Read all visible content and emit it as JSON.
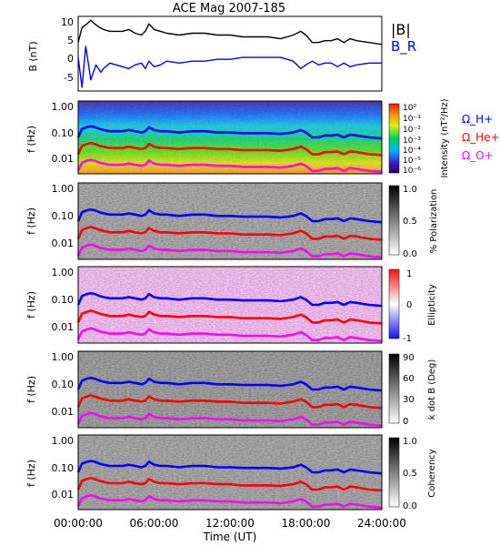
{
  "title": "ACE Mag 2007-185",
  "xlabel": "Time (UT)",
  "colors": {
    "total_field": "#000000",
    "radial_field": "#0000ff",
    "proton_gyro": "#0000ff",
    "helium_gyro": "#ff0000",
    "oxygen_gyro": "#ff00ff"
  },
  "chart_data": [
    {
      "type": "line",
      "ylabel": "B (nT)",
      "ylim": [
        -9,
        11
      ],
      "yticks": [
        "10",
        "5",
        "0",
        "-5"
      ],
      "xlim": [
        "00:00:00",
        "24:00:00"
      ],
      "xticks": [
        "00:00:00",
        "06:00:00",
        "12:00:00",
        "18:00:00",
        "24:00:00"
      ],
      "legend": [
        "|B|",
        "B_R"
      ],
      "series": [
        {
          "name": "|B|",
          "x": [
            0,
            0.3,
            0.7,
            1,
            1.3,
            1.7,
            2,
            2.5,
            3,
            3.5,
            4,
            4.5,
            5,
            5.3,
            5.6,
            6,
            6.5,
            7,
            8,
            9,
            10,
            11,
            12,
            13,
            14,
            15,
            16,
            17,
            17.6,
            18,
            18.5,
            19,
            19.5,
            20,
            20.5,
            21,
            21.5,
            22,
            23,
            24
          ],
          "values": [
            4,
            8,
            9,
            10,
            9,
            8,
            7.5,
            7,
            7,
            7,
            7.5,
            6.5,
            6,
            7,
            9,
            7.5,
            7,
            6.5,
            6,
            6.5,
            6.5,
            6,
            6,
            5.5,
            5.5,
            5.5,
            5,
            6,
            7,
            6,
            4,
            4,
            4.5,
            4.5,
            5,
            4,
            5,
            4.5,
            4,
            3.5
          ]
        },
        {
          "name": "B_R",
          "x": [
            0,
            0.3,
            0.6,
            1,
            1.4,
            1.8,
            2,
            2.5,
            3,
            3.5,
            4,
            4.5,
            5,
            5.3,
            5.6,
            6,
            6.5,
            7,
            8,
            9,
            10,
            11,
            12,
            13,
            14,
            15,
            16,
            17,
            17.6,
            18,
            18.5,
            19,
            19.5,
            20,
            20.5,
            21,
            21.5,
            22,
            23,
            24
          ],
          "values": [
            0,
            -8,
            3,
            -6,
            -2,
            -4,
            -3,
            -1.5,
            -2,
            -2.5,
            -3,
            -2,
            -1.5,
            -3,
            -1,
            -2.5,
            -2,
            -1,
            -1.5,
            -1,
            -1,
            -0.5,
            -0.5,
            0,
            0,
            0,
            0,
            -1,
            -3,
            -2,
            -1,
            -2,
            -1.5,
            -1.5,
            -2.5,
            -1.5,
            -2.5,
            -2,
            -1.5,
            -1.5
          ]
        }
      ]
    },
    {
      "type": "heatmap",
      "ylabel": "f (Hz)",
      "yscale": "log",
      "ylim": [
        0.003,
        1.0
      ],
      "yticks": [
        "1.00",
        "0.10",
        "0.01"
      ],
      "colorbar_label": "Intensity (nT²/Hz)",
      "colorbar_ticks": [
        "10⁰",
        "10⁻¹",
        "10⁻²",
        "10⁻³",
        "10⁻⁴",
        "10⁻⁵",
        "10⁻⁶"
      ],
      "legend": [
        "Ω_H+",
        "Ω_He+",
        "Ω_O+"
      ]
    },
    {
      "type": "heatmap",
      "ylabel": "f (Hz)",
      "yscale": "log",
      "yticks": [
        "1.00",
        "0.10",
        "0.01"
      ],
      "colorbar_label": "% Polarization",
      "colorbar_ticks": [
        "1.0",
        "0.5",
        "0.0"
      ]
    },
    {
      "type": "heatmap",
      "ylabel": "f (Hz)",
      "yscale": "log",
      "yticks": [
        "1.00",
        "0.10",
        "0.01"
      ],
      "colorbar_label": "Ellipticity",
      "colorbar_ticks": [
        "1",
        "0",
        "-1"
      ]
    },
    {
      "type": "heatmap",
      "ylabel": "f (Hz)",
      "yscale": "log",
      "yticks": [
        "1.00",
        "0.10",
        "0.01"
      ],
      "colorbar_label": "k dot B (Deg)",
      "colorbar_ticks": [
        "90",
        "60",
        "30",
        "0"
      ]
    },
    {
      "type": "heatmap",
      "ylabel": "f (Hz)",
      "yscale": "log",
      "yticks": [
        "1.00",
        "0.10",
        "0.01"
      ],
      "colorbar_label": "Coherency",
      "colorbar_ticks": [
        "1.0",
        "0.5",
        "0.0"
      ]
    }
  ],
  "gyrofrequency": {
    "x": [
      0,
      0.3,
      0.7,
      1,
      1.3,
      1.7,
      2,
      2.5,
      3,
      3.5,
      4,
      4.5,
      5,
      5.3,
      5.6,
      6,
      6.5,
      7,
      8,
      9,
      10,
      11,
      12,
      13,
      14,
      15,
      16,
      17,
      17.6,
      18,
      18.5,
      19,
      19.5,
      20,
      20.5,
      21,
      21.5,
      22,
      23,
      24
    ],
    "proton_hz": [
      0.06,
      0.12,
      0.14,
      0.15,
      0.14,
      0.12,
      0.11,
      0.1,
      0.1,
      0.1,
      0.11,
      0.1,
      0.09,
      0.1,
      0.14,
      0.11,
      0.1,
      0.1,
      0.09,
      0.1,
      0.1,
      0.09,
      0.09,
      0.085,
      0.085,
      0.085,
      0.08,
      0.09,
      0.11,
      0.09,
      0.06,
      0.06,
      0.07,
      0.07,
      0.075,
      0.06,
      0.075,
      0.07,
      0.06,
      0.055
    ],
    "helium_hz": [
      0.015,
      0.03,
      0.035,
      0.038,
      0.035,
      0.03,
      0.028,
      0.025,
      0.025,
      0.025,
      0.028,
      0.025,
      0.023,
      0.025,
      0.035,
      0.028,
      0.025,
      0.025,
      0.023,
      0.025,
      0.025,
      0.023,
      0.023,
      0.021,
      0.021,
      0.021,
      0.02,
      0.023,
      0.028,
      0.023,
      0.015,
      0.015,
      0.018,
      0.018,
      0.019,
      0.015,
      0.019,
      0.018,
      0.015,
      0.014
    ],
    "oxygen_hz": [
      0.004,
      0.0075,
      0.0088,
      0.0095,
      0.0088,
      0.0075,
      0.007,
      0.0063,
      0.0063,
      0.0063,
      0.007,
      0.0063,
      0.0058,
      0.0063,
      0.0088,
      0.007,
      0.0063,
      0.0063,
      0.0058,
      0.0063,
      0.0063,
      0.0058,
      0.0058,
      0.0053,
      0.0053,
      0.0053,
      0.005,
      0.0058,
      0.007,
      0.0058,
      0.0038,
      0.0038,
      0.0045,
      0.0045,
      0.0048,
      0.0038,
      0.0048,
      0.0045,
      0.0038,
      0.0035
    ]
  }
}
